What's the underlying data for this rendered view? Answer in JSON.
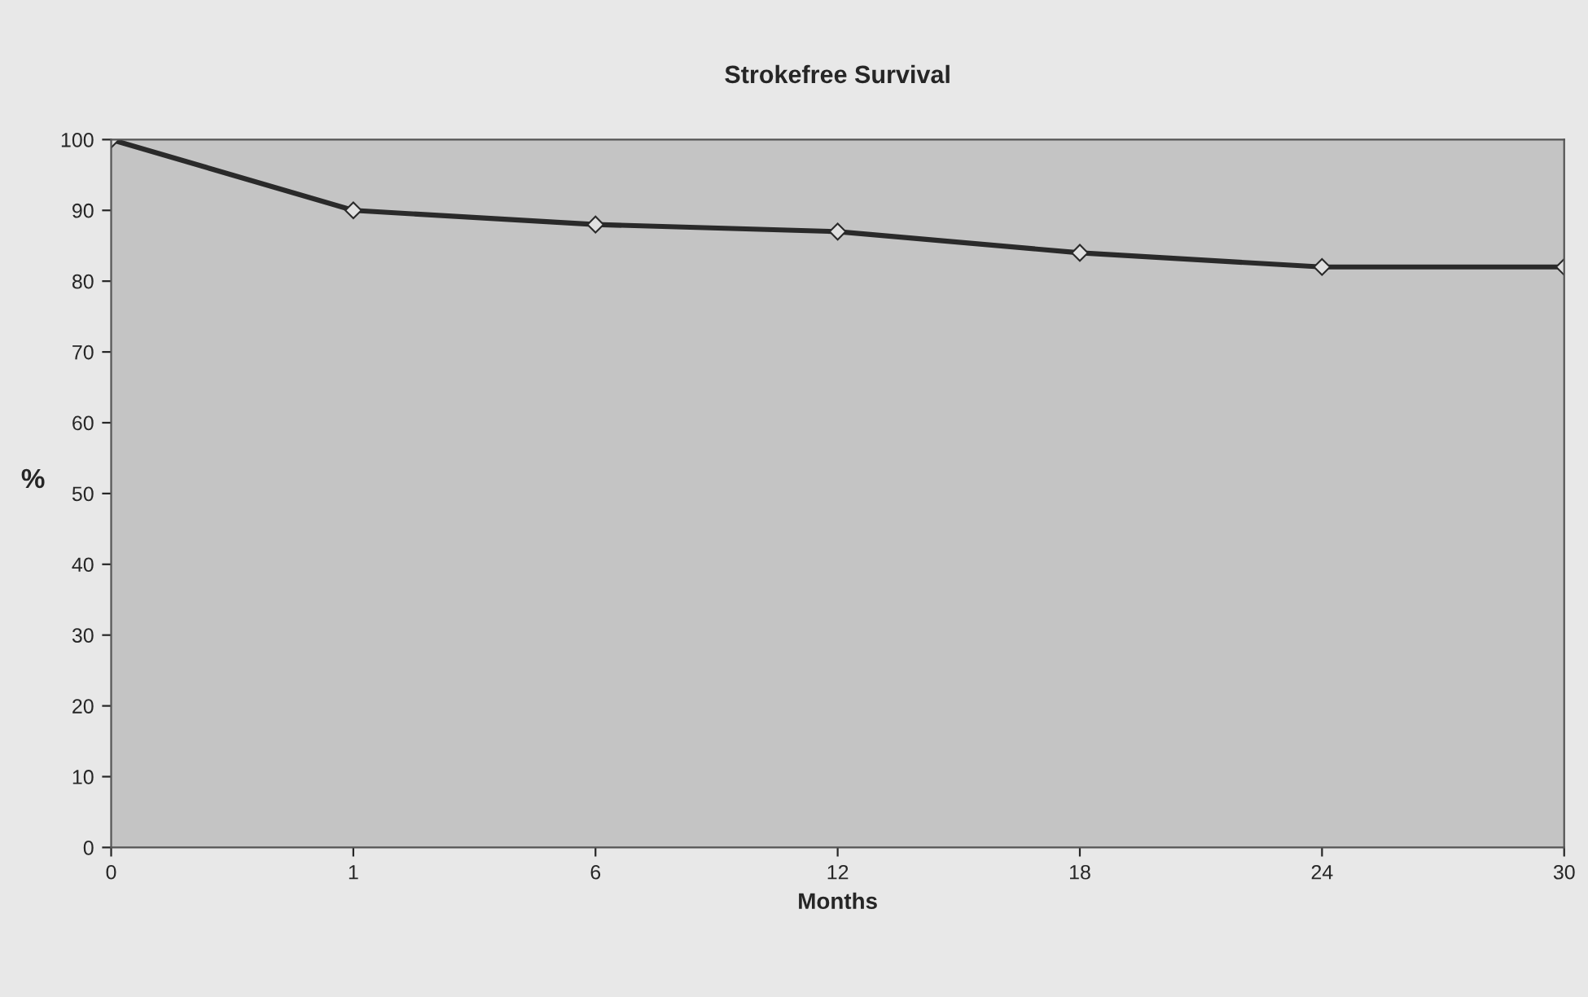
{
  "chart_data": {
    "type": "line",
    "title": "Strokefree Survival",
    "xlabel": "Months",
    "ylabel": "%",
    "categories": [
      "0",
      "1",
      "6",
      "12",
      "18",
      "24",
      "30"
    ],
    "series": [
      {
        "color": "#2a2a2a",
        "values": [
          100,
          90,
          88,
          87,
          84,
          82,
          82
        ]
      }
    ],
    "ylim": [
      0,
      100
    ],
    "yticks": [
      0,
      10,
      20,
      30,
      40,
      50,
      60,
      70,
      80,
      90,
      100
    ],
    "marker": "diamond",
    "line_style": "solid",
    "grid": false,
    "legend": false
  }
}
